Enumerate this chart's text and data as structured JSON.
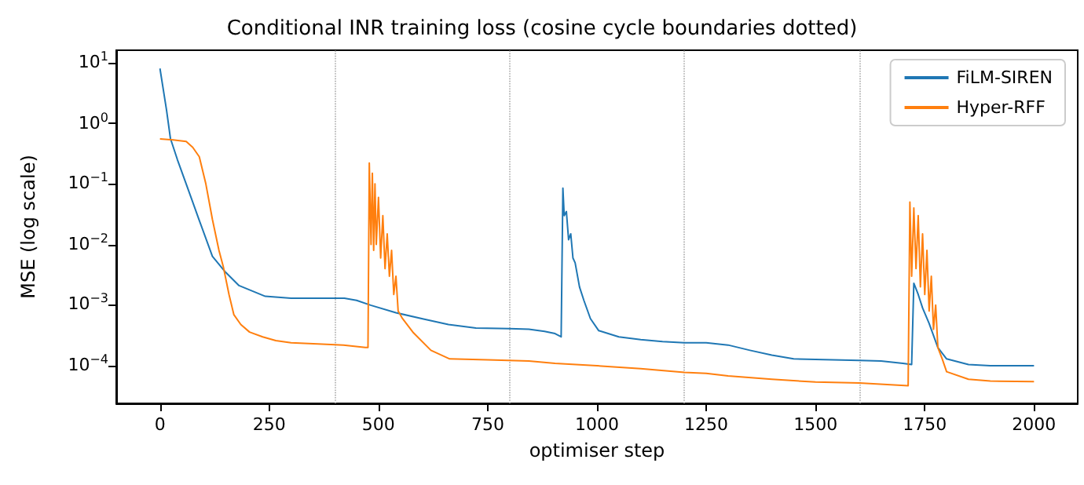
{
  "chart_data": {
    "type": "line",
    "title": "Conditional INR training loss (cosine cycle boundaries dotted)",
    "xlabel": "optimiser step",
    "ylabel": "MSE (log scale)",
    "xlim": [
      -100,
      2100
    ],
    "xticks": [
      0,
      250,
      500,
      750,
      1000,
      1250,
      1500,
      1750,
      2000
    ],
    "ylim": [
      2.4e-05,
      16
    ],
    "yticks": [
      {
        "value": 0.0001,
        "label": "10$^{−4}$"
      },
      {
        "value": 0.001,
        "label": "10$^{−3}$"
      },
      {
        "value": 0.01,
        "label": "10$^{−2}$"
      },
      {
        "value": 0.1,
        "label": "10$^{−1}$"
      },
      {
        "value": 1,
        "label": "10$^{0}$"
      },
      {
        "value": 10,
        "label": "10$^{1}$"
      }
    ],
    "log": "y",
    "grid": false,
    "legend": "top right",
    "line_style": "solid",
    "marker": "none",
    "ref_lines": [
      {
        "axis": "x",
        "value": 400,
        "color": "#aaaaaa",
        "line_style": "dotted"
      },
      {
        "axis": "x",
        "value": 800,
        "color": "#aaaaaa",
        "line_style": "dotted"
      },
      {
        "axis": "x",
        "value": 1200,
        "color": "#aaaaaa",
        "line_style": "dotted"
      },
      {
        "axis": "x",
        "value": 1600,
        "color": "#aaaaaa",
        "line_style": "dotted"
      }
    ],
    "series": [
      {
        "name": "FiLM-SIREN",
        "color": "#1f77b4",
        "x": [
          0,
          15,
          24,
          40,
          60,
          90,
          120,
          150,
          181,
          241,
          300,
          361,
          422,
          450,
          482,
          540,
          603,
          660,
          723,
          800,
          844,
          880,
          904,
          918,
          922,
          925,
          930,
          935,
          940,
          945,
          950,
          960,
          970,
          985,
          1004,
          1050,
          1100,
          1150,
          1200,
          1250,
          1300,
          1350,
          1400,
          1450,
          1500,
          1600,
          1650,
          1700,
          1720,
          1725,
          1735,
          1745,
          1760,
          1780,
          1800,
          1850,
          1900,
          2000
        ],
        "values": [
          8,
          1.66,
          0.56,
          0.25,
          0.1,
          0.025,
          0.0064,
          0.0035,
          0.0021,
          0.0014,
          0.0013,
          0.0013,
          0.0013,
          0.0012,
          0.001,
          0.00075,
          0.00059,
          0.00048,
          0.00042,
          0.00041,
          0.0004,
          0.00037,
          0.00034,
          0.0003,
          0.085,
          0.03,
          0.035,
          0.012,
          0.015,
          0.006,
          0.005,
          0.002,
          0.0012,
          0.0006,
          0.00038,
          0.0003,
          0.00027,
          0.00025,
          0.00024,
          0.00024,
          0.00022,
          0.00018,
          0.00015,
          0.00013,
          0.000127,
          0.000123,
          0.00012,
          0.00011,
          0.000105,
          0.0023,
          0.0015,
          0.0009,
          0.0005,
          0.0002,
          0.00013,
          0.000105,
          0.0001,
          0.0001
        ]
      },
      {
        "name": "Hyper-RFF",
        "color": "#ff7f0e",
        "x": [
          0,
          30,
          60,
          75,
          90,
          105,
          120,
          135,
          145,
          158,
          169,
          185,
          205,
          235,
          265,
          300,
          361,
          420,
          470,
          476,
          479,
          483,
          486,
          489,
          492,
          495,
          500,
          505,
          510,
          515,
          520,
          525,
          530,
          535,
          540,
          545,
          555,
          580,
          620,
          663,
          750,
          844,
          904,
          1000,
          1100,
          1200,
          1250,
          1300,
          1400,
          1500,
          1600,
          1712,
          1716,
          1720,
          1725,
          1730,
          1735,
          1740,
          1745,
          1750,
          1755,
          1760,
          1765,
          1770,
          1775,
          1780,
          1790,
          1800,
          1850,
          1900,
          2000
        ],
        "values": [
          0.55,
          0.53,
          0.5,
          0.4,
          0.28,
          0.1,
          0.026,
          0.008,
          0.0043,
          0.0015,
          0.0007,
          0.00048,
          0.00036,
          0.0003,
          0.00026,
          0.00024,
          0.00023,
          0.00022,
          0.0002,
          0.0002,
          0.22,
          0.01,
          0.15,
          0.008,
          0.1,
          0.01,
          0.06,
          0.006,
          0.03,
          0.004,
          0.015,
          0.003,
          0.008,
          0.0015,
          0.003,
          0.0008,
          0.0006,
          0.00035,
          0.00018,
          0.00013,
          0.000125,
          0.00012,
          0.00011,
          0.0001,
          9e-05,
          7.8e-05,
          7.5e-05,
          6.8e-05,
          6e-05,
          5.4e-05,
          5.2e-05,
          4.7e-05,
          0.05,
          0.003,
          0.04,
          0.004,
          0.03,
          0.002,
          0.015,
          0.0015,
          0.008,
          0.0008,
          0.003,
          0.0004,
          0.001,
          0.0002,
          0.00013,
          8e-05,
          6e-05,
          5.6e-05,
          5.5e-05
        ]
      }
    ]
  }
}
